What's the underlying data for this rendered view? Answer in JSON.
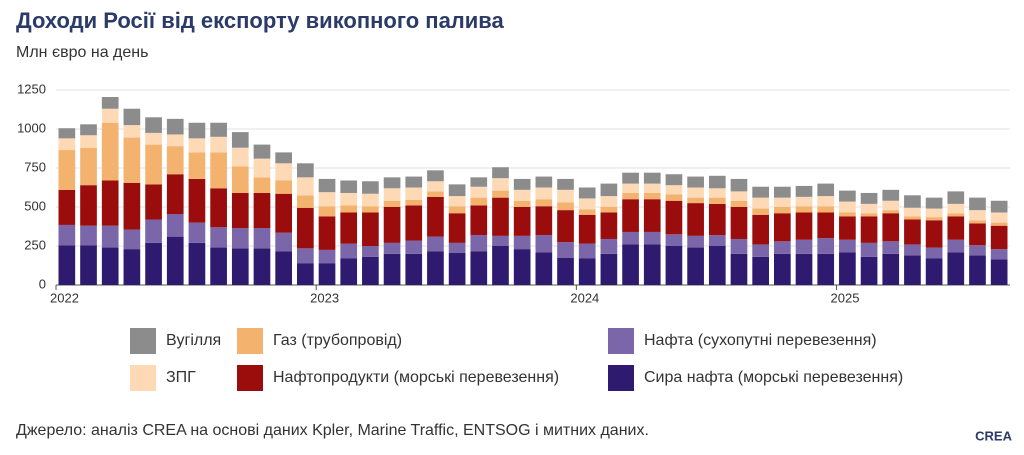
{
  "chart_data": {
    "type": "stacked_bar",
    "title": "Доходи Росії від експорту викопного палива",
    "subtitle": "Млн євро на день",
    "source": "Джерело: аналіз CREA на основі даних Kpler, Marine Traffic, ENTSOG і митних даних.",
    "logo": "CREA",
    "categories": [
      "2022",
      null,
      null,
      null,
      null,
      null,
      null,
      null,
      null,
      null,
      null,
      null,
      "2023",
      null,
      null,
      null,
      null,
      null,
      null,
      null,
      null,
      null,
      null,
      null,
      "2024",
      null,
      null,
      null,
      null,
      null,
      null,
      null,
      null,
      null,
      null,
      null,
      "2025",
      null,
      null,
      null,
      null,
      null,
      null,
      null
    ],
    "ylim": [
      0,
      1250
    ],
    "yticks": [
      0,
      250,
      500,
      750,
      1000,
      {
        "value": 1250,
        "label": "1250"
      }
    ],
    "grid": true,
    "series": [
      {
        "name": "Сира нафта (морські перевезення)",
        "color": "#2e1a6e",
        "values": [
          255,
          255,
          240,
          230,
          270,
          310,
          270,
          240,
          235,
          235,
          215,
          140,
          140,
          170,
          180,
          200,
          200,
          215,
          205,
          215,
          250,
          230,
          210,
          175,
          170,
          200,
          260,
          260,
          250,
          240,
          250,
          200,
          180,
          200,
          200,
          200,
          210,
          180,
          200,
          190,
          170,
          210,
          190,
          165
        ]
      },
      {
        "name": "Нафта (сухопутні перевезення)",
        "color": "#7a66a8",
        "values": [
          130,
          125,
          140,
          125,
          150,
          145,
          130,
          130,
          130,
          130,
          120,
          95,
          85,
          95,
          70,
          70,
          85,
          95,
          65,
          105,
          65,
          85,
          110,
          100,
          95,
          95,
          80,
          80,
          75,
          75,
          70,
          95,
          80,
          80,
          90,
          100,
          80,
          90,
          80,
          70,
          70,
          80,
          65,
          65
        ]
      },
      {
        "name": "Нафтопродукти (морські перевезення)",
        "color": "#9b0d0d",
        "values": [
          225,
          260,
          290,
          300,
          225,
          255,
          280,
          250,
          225,
          225,
          250,
          260,
          215,
          200,
          215,
          230,
          225,
          255,
          190,
          190,
          245,
          185,
          185,
          205,
          185,
          170,
          210,
          210,
          215,
          210,
          200,
          205,
          190,
          180,
          175,
          165,
          150,
          170,
          180,
          160,
          175,
          150,
          140,
          150
        ]
      },
      {
        "name": "Газ (трубопровід)",
        "color": "#f4b26f",
        "values": [
          255,
          240,
          370,
          290,
          255,
          180,
          170,
          230,
          170,
          100,
          85,
          80,
          65,
          45,
          40,
          40,
          35,
          35,
          45,
          50,
          45,
          40,
          45,
          50,
          35,
          35,
          40,
          40,
          40,
          35,
          40,
          40,
          40,
          40,
          40,
          40,
          25,
          20,
          20,
          20,
          20,
          20,
          20,
          20
        ]
      },
      {
        "name": "ЗПГ",
        "color": "#fdd9b5",
        "values": [
          75,
          80,
          90,
          80,
          75,
          75,
          90,
          100,
          120,
          120,
          110,
          115,
          90,
          80,
          80,
          80,
          80,
          65,
          65,
          70,
          80,
          70,
          75,
          80,
          70,
          70,
          60,
          60,
          60,
          65,
          60,
          60,
          70,
          60,
          60,
          65,
          70,
          60,
          60,
          55,
          55,
          60,
          65,
          65
        ]
      },
      {
        "name": "Вугілля",
        "color": "#8c8c8c",
        "values": [
          65,
          70,
          75,
          105,
          100,
          100,
          100,
          90,
          100,
          90,
          70,
          90,
          85,
          80,
          80,
          70,
          70,
          70,
          75,
          60,
          70,
          70,
          70,
          70,
          70,
          80,
          70,
          70,
          70,
          70,
          80,
          80,
          70,
          70,
          70,
          80,
          70,
          70,
          70,
          80,
          70,
          80,
          80,
          75
        ]
      }
    ]
  }
}
